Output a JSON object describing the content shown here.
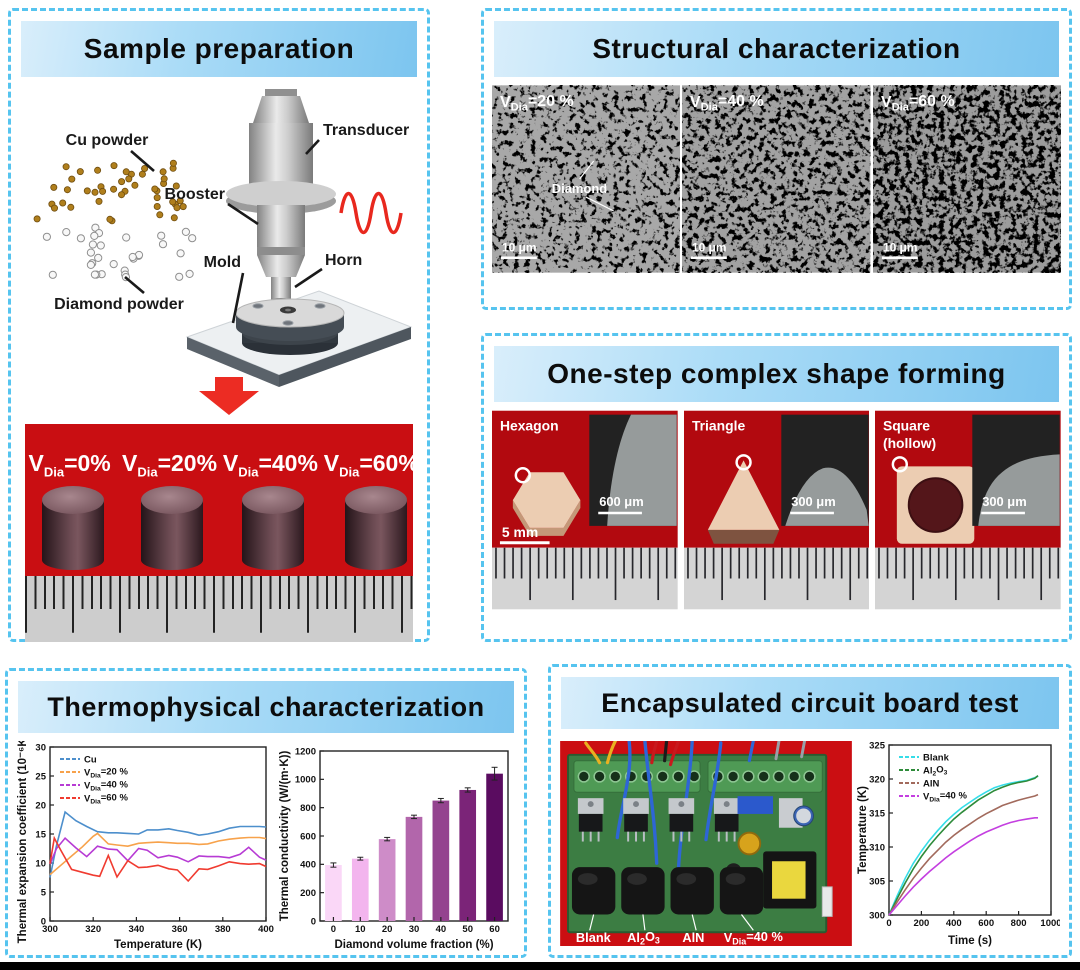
{
  "colors": {
    "border_dash": "#56c4ef",
    "header_gradient_start": "#d9eefb",
    "header_gradient_end": "#7cc5ef",
    "photo_red": "#c90e12",
    "arrow_red": "#ec2c23",
    "copper": "#eccdb2"
  },
  "panels": {
    "sample_preparation": {
      "title": "Sample preparation",
      "labels": {
        "cu_powder": "Cu powder",
        "diamond_powder": "Diamond powder",
        "transducer": "Transducer",
        "booster": "Booster",
        "horn": "Horn",
        "mold": "Mold"
      },
      "samples": [
        "V_{Dia}=0%",
        "V_{Dia}=20%",
        "V_{Dia}=40%",
        "V_{Dia}=60%"
      ]
    },
    "structural": {
      "title": "Structural characterization",
      "images": [
        {
          "label": "V_{Dia}=20 %",
          "scale_bar": "10 μm",
          "annotation": "Diamond"
        },
        {
          "label": "V_{Dia}=40 %",
          "scale_bar": "10 μm"
        },
        {
          "label": "V_{Dia}=60 %",
          "scale_bar": "10 μm"
        }
      ]
    },
    "shape_forming": {
      "title": "One-step complex shape forming",
      "shapes": [
        {
          "label": "Hexagon",
          "scale_bar": "5 mm",
          "inset_scale": "600 μm"
        },
        {
          "label": "Triangle",
          "inset_scale": "300 μm"
        },
        {
          "label": "Square\n(hollow)",
          "inset_scale": "300 μm"
        }
      ]
    },
    "thermophysical": {
      "title": "Thermophysical characterization"
    },
    "circuit_board": {
      "title": "Encapsulated circuit board test",
      "board_labels": [
        "Blank",
        "Al_{2}O_{3}",
        "AlN",
        "V_{Dia}=40 %"
      ]
    }
  },
  "chart_data": [
    {
      "id": "thermal_expansion",
      "type": "line",
      "xlabel": "Temperature (K)",
      "ylabel": "Thermal expansion coefficient (10⁻⁶K⁻¹)",
      "xlim": [
        300,
        400
      ],
      "ylim": [
        0,
        30
      ],
      "xticks": [
        300,
        320,
        340,
        360,
        380,
        400
      ],
      "yticks": [
        0,
        5,
        10,
        15,
        20,
        25,
        30
      ],
      "legend_position": "top-left",
      "grid": false,
      "series": [
        {
          "name": "Cu",
          "color": "#4d8fcc",
          "x": [
            300,
            303,
            307,
            312,
            317,
            322,
            327,
            331,
            336,
            341,
            345,
            350,
            355,
            359,
            364,
            369,
            373,
            378,
            383,
            388,
            392,
            397,
            400
          ],
          "y": [
            7.5,
            13.0,
            18.8,
            17.3,
            16.3,
            15.4,
            15.2,
            15.2,
            15.1,
            15.0,
            15.7,
            15.7,
            15.9,
            15.6,
            15.3,
            14.8,
            15.0,
            15.4,
            16.0,
            16.3,
            16.3,
            16.3,
            16.2
          ]
        },
        {
          "name": "V_{Dia}=20 %",
          "color": "#f7a24b",
          "x": [
            300,
            305,
            310,
            315,
            320,
            322,
            327,
            331,
            336,
            341,
            345,
            350,
            355,
            359,
            364,
            369,
            373,
            378,
            383,
            388,
            392,
            397,
            400
          ],
          "y": [
            8.0,
            9.6,
            11.2,
            12.8,
            14.6,
            15.1,
            13.3,
            13.1,
            12.9,
            13.4,
            13.5,
            13.6,
            13.5,
            13.4,
            13.4,
            13.2,
            13.3,
            13.8,
            14.1,
            14.3,
            14.4,
            14.4,
            14.2
          ]
        },
        {
          "name": "V_{Dia}=40 %",
          "color": "#b73bd4",
          "x": [
            300,
            303,
            307,
            312,
            317,
            322,
            327,
            331,
            336,
            341,
            345,
            350,
            355,
            359,
            364,
            369,
            373,
            378,
            383,
            388,
            392,
            397,
            400
          ],
          "y": [
            9.8,
            12.5,
            14.3,
            12.6,
            11.1,
            12.9,
            12.4,
            12.3,
            10.4,
            12.5,
            12.2,
            10.9,
            11.3,
            11.0,
            10.2,
            11.2,
            11.1,
            11.1,
            10.9,
            11.5,
            12.7,
            11.0,
            10.5
          ]
        },
        {
          "name": "V_{Dia}=60 %",
          "color": "#f03b30",
          "x": [
            300,
            302,
            305,
            310,
            315,
            320,
            323,
            327,
            331,
            336,
            341,
            345,
            350,
            355,
            359,
            364,
            369,
            373,
            378,
            383,
            388,
            392,
            397,
            400
          ],
          "y": [
            9.9,
            14.3,
            12.2,
            8.9,
            8.4,
            7.9,
            7.7,
            11.3,
            7.6,
            10.4,
            9.2,
            9.3,
            9.6,
            9.0,
            8.8,
            6.9,
            9.0,
            8.9,
            9.5,
            10.2,
            9.9,
            9.8,
            9.9,
            9.4
          ]
        }
      ]
    },
    {
      "id": "thermal_conductivity",
      "type": "bar",
      "xlabel": "Diamond volume fraction (%)",
      "ylabel": "Thermal conductivity (W/(m·K))",
      "categories": [
        "0",
        "10",
        "20",
        "30",
        "40",
        "50",
        "60"
      ],
      "values": [
        395,
        440,
        578,
        735,
        850,
        925,
        1040
      ],
      "errors": [
        15,
        10,
        12,
        12,
        15,
        15,
        45
      ],
      "bar_colors": [
        "#fad7f7",
        "#f3b5ee",
        "#ce8cc8",
        "#b266ab",
        "#94438f",
        "#7b2478",
        "#5a0c60"
      ],
      "ylim": [
        0,
        1200
      ],
      "yticks": [
        0,
        200,
        400,
        600,
        800,
        1000,
        1200
      ],
      "grid": false
    },
    {
      "id": "board_temperature",
      "type": "line",
      "xlabel": "Time (s)",
      "ylabel": "Temperature (K)",
      "xlim": [
        0,
        1000
      ],
      "ylim": [
        300,
        325
      ],
      "xticks": [
        0,
        200,
        400,
        600,
        800,
        1000
      ],
      "yticks": [
        300,
        305,
        310,
        315,
        320,
        325
      ],
      "legend_position": "top-left",
      "grid": false,
      "series": [
        {
          "name": "Blank",
          "color": "#35dde8",
          "x": [
            0,
            50,
            100,
            150,
            200,
            250,
            300,
            350,
            400,
            450,
            500,
            550,
            600,
            650,
            700,
            750,
            800,
            850,
            900,
            920
          ],
          "y": [
            300,
            302.8,
            305.4,
            307.6,
            309.4,
            311.0,
            312.4,
            313.7,
            314.8,
            315.8,
            316.6,
            317.4,
            318.1,
            318.7,
            319.1,
            319.4,
            319.6,
            319.8,
            320.2,
            320.4
          ]
        },
        {
          "name": "Al_{2}O_{3}",
          "color": "#2e8b3a",
          "x": [
            0,
            50,
            100,
            150,
            200,
            250,
            300,
            350,
            400,
            450,
            500,
            550,
            600,
            650,
            700,
            750,
            800,
            850,
            900,
            920
          ],
          "y": [
            300,
            302.4,
            304.7,
            306.8,
            308.6,
            310.2,
            311.6,
            312.9,
            314.1,
            315.1,
            316.0,
            316.9,
            317.6,
            318.3,
            318.8,
            319.2,
            319.5,
            319.7,
            320.1,
            320.5
          ]
        },
        {
          "name": "AlN",
          "color": "#a26a5c",
          "x": [
            0,
            50,
            100,
            150,
            200,
            250,
            300,
            350,
            400,
            450,
            500,
            550,
            600,
            650,
            700,
            750,
            800,
            850,
            900,
            920
          ],
          "y": [
            300,
            301.9,
            303.7,
            305.4,
            306.9,
            308.3,
            309.5,
            310.7,
            311.7,
            312.6,
            313.4,
            314.2,
            314.9,
            315.5,
            316.1,
            316.5,
            316.9,
            317.2,
            317.5,
            317.7
          ]
        },
        {
          "name": "V_{Dia}=40 %",
          "color": "#c43fe0",
          "x": [
            0,
            50,
            100,
            150,
            200,
            250,
            300,
            350,
            400,
            450,
            500,
            550,
            600,
            650,
            700,
            750,
            800,
            850,
            900,
            920
          ],
          "y": [
            300,
            301.4,
            302.8,
            304.1,
            305.3,
            306.4,
            307.4,
            308.4,
            309.3,
            310.1,
            310.9,
            311.6,
            312.2,
            312.7,
            313.2,
            313.6,
            313.9,
            314.1,
            314.3,
            314.3
          ]
        }
      ]
    }
  ]
}
